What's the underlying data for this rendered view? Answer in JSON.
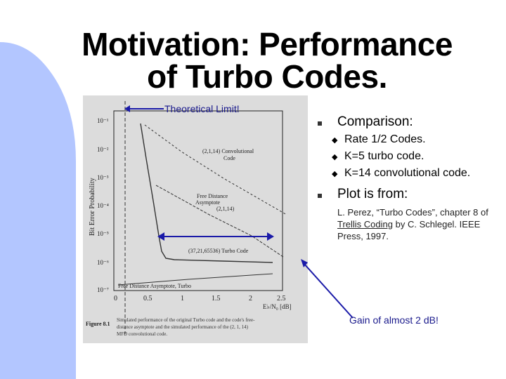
{
  "title": {
    "line1": "Motivation: Performance",
    "line2": "of Turbo Codes."
  },
  "annotations": {
    "theoretical_limit": "Theoretical Limit!",
    "gain": "Gain of almost 2 dB!"
  },
  "bullets": {
    "comparison": "Comparison:",
    "comparison_items": [
      "Rate 1/2 Codes.",
      "K=5 turbo code.",
      "K=14 convolutional code."
    ],
    "plot_from": "Plot is from:",
    "ref_part1": "L. Perez, “Turbo Codes”, chapter 8 of ",
    "ref_book": "Trellis Coding",
    "ref_part2": " by C. Schlegel. IEEE Press, 1997."
  },
  "figure": {
    "ylabel": "Bit Error Probability",
    "y_ticks": [
      "10⁻¹",
      "10⁻²",
      "10⁻³",
      "10⁻⁴",
      "10⁻⁵",
      "10⁻⁶",
      "10⁻⁷"
    ],
    "x_ticks": [
      "0",
      "0.5",
      "1",
      "1.5",
      "2",
      "2.5"
    ],
    "xlabel": "E♭/N₀ [dB]",
    "curve_label_conv": "(2,1,14) Convolutional Code",
    "curve_label_free": "Free Distance Asymptote (2,1,14)",
    "curve_label_turbo": "(37,21,65536) Turbo Code",
    "curve_label_free_turbo": "Free Distance Asymptote, Turbo",
    "caption_head": "Figure 8.1",
    "caption": "Simulated performance of the original Turbo code and the code's free-distance asymptote and the simulated performance of the (2, 1, 14) MFD convolutional code."
  },
  "colors": {
    "sidebar": "#b3c6ff",
    "annotation": "#1a1a8c",
    "arrow": "#1a1aa8"
  }
}
